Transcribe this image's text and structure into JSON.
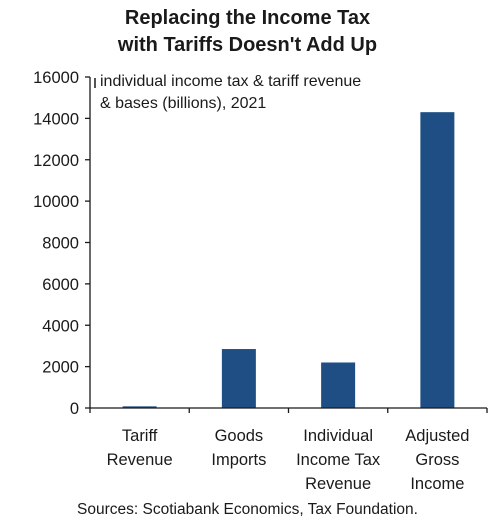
{
  "chart_data": {
    "type": "bar",
    "title_line1": "Replacing the Income Tax",
    "title_line2": "with Tariffs Doesn't Add Up",
    "annotation_line1": "individual income tax & tariff revenue",
    "annotation_line2": "& bases (billions), 2021",
    "clipped_left_label": "d",
    "categories": [
      [
        "Tariff",
        "Revenue"
      ],
      [
        "Goods",
        "Imports"
      ],
      [
        "Individual",
        "Income Tax",
        "Revenue"
      ],
      [
        "Adjusted",
        "Gross",
        "Income"
      ]
    ],
    "values": [
      80,
      2850,
      2200,
      14300
    ],
    "ylim": [
      0,
      16000
    ],
    "yticks": [
      "16000",
      "14000",
      "12000",
      "10000",
      "8000",
      "6000",
      "4000",
      "2000",
      "0"
    ],
    "bar_color": "#1f4e85",
    "source": "Sources: Scotiabank Economics, Tax Foundation."
  }
}
